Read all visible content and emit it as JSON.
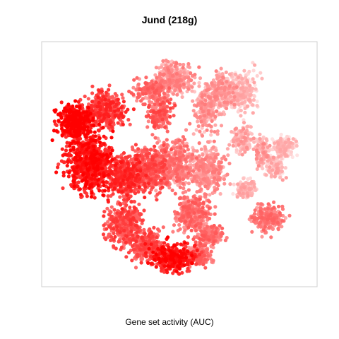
{
  "chart_data": {
    "type": "scatter",
    "title": "Jund (218g)",
    "xlabel": "Gene set activity (AUC)",
    "ylabel": "",
    "axes_visible": false,
    "legend": "none",
    "color_scale": {
      "low": "#ffe2e2",
      "high": "#ff0000"
    },
    "clusters": [
      {
        "cx": 0.17,
        "cy": 0.5,
        "rx": 0.09,
        "ry": 0.13,
        "n": 700,
        "level": 0.85
      },
      {
        "cx": 0.12,
        "cy": 0.33,
        "rx": 0.07,
        "ry": 0.07,
        "n": 350,
        "level": 0.95
      },
      {
        "cx": 0.23,
        "cy": 0.28,
        "rx": 0.08,
        "ry": 0.08,
        "n": 350,
        "level": 0.7
      },
      {
        "cx": 0.3,
        "cy": 0.55,
        "rx": 0.08,
        "ry": 0.1,
        "n": 400,
        "level": 0.72
      },
      {
        "cx": 0.3,
        "cy": 0.75,
        "rx": 0.07,
        "ry": 0.09,
        "n": 350,
        "level": 0.62
      },
      {
        "cx": 0.4,
        "cy": 0.52,
        "rx": 0.07,
        "ry": 0.09,
        "n": 350,
        "level": 0.58
      },
      {
        "cx": 0.38,
        "cy": 0.83,
        "rx": 0.06,
        "ry": 0.07,
        "n": 250,
        "level": 0.6
      },
      {
        "cx": 0.48,
        "cy": 0.5,
        "rx": 0.08,
        "ry": 0.11,
        "n": 400,
        "level": 0.4
      },
      {
        "cx": 0.43,
        "cy": 0.3,
        "rx": 0.05,
        "ry": 0.06,
        "n": 150,
        "level": 0.55
      },
      {
        "cx": 0.4,
        "cy": 0.2,
        "rx": 0.06,
        "ry": 0.05,
        "n": 200,
        "level": 0.45
      },
      {
        "cx": 0.48,
        "cy": 0.15,
        "rx": 0.08,
        "ry": 0.07,
        "n": 300,
        "level": 0.3
      },
      {
        "cx": 0.6,
        "cy": 0.27,
        "rx": 0.05,
        "ry": 0.1,
        "n": 200,
        "level": 0.28
      },
      {
        "cx": 0.66,
        "cy": 0.2,
        "rx": 0.06,
        "ry": 0.08,
        "n": 220,
        "level": 0.25
      },
      {
        "cx": 0.55,
        "cy": 0.7,
        "rx": 0.07,
        "ry": 0.08,
        "n": 300,
        "level": 0.45
      },
      {
        "cx": 0.6,
        "cy": 0.52,
        "rx": 0.07,
        "ry": 0.1,
        "n": 350,
        "level": 0.3
      },
      {
        "cx": 0.61,
        "cy": 0.79,
        "rx": 0.05,
        "ry": 0.04,
        "n": 150,
        "level": 0.45
      },
      {
        "cx": 0.48,
        "cy": 0.88,
        "rx": 0.09,
        "ry": 0.06,
        "n": 350,
        "level": 0.85
      },
      {
        "cx": 0.57,
        "cy": 0.87,
        "rx": 0.05,
        "ry": 0.05,
        "n": 150,
        "level": 0.45
      },
      {
        "cx": 0.73,
        "cy": 0.2,
        "rx": 0.06,
        "ry": 0.09,
        "n": 250,
        "level": 0.12
      },
      {
        "cx": 0.8,
        "cy": 0.45,
        "rx": 0.03,
        "ry": 0.07,
        "n": 100,
        "level": 0.25
      },
      {
        "cx": 0.82,
        "cy": 0.72,
        "rx": 0.06,
        "ry": 0.06,
        "n": 220,
        "level": 0.4
      },
      {
        "cx": 0.85,
        "cy": 0.52,
        "rx": 0.04,
        "ry": 0.05,
        "n": 100,
        "level": 0.15
      },
      {
        "cx": 0.88,
        "cy": 0.43,
        "rx": 0.05,
        "ry": 0.05,
        "n": 150,
        "level": 0.1
      },
      {
        "cx": 0.74,
        "cy": 0.6,
        "rx": 0.04,
        "ry": 0.04,
        "n": 100,
        "level": 0.15
      },
      {
        "cx": 0.73,
        "cy": 0.4,
        "rx": 0.04,
        "ry": 0.06,
        "n": 120,
        "level": 0.2
      }
    ]
  }
}
